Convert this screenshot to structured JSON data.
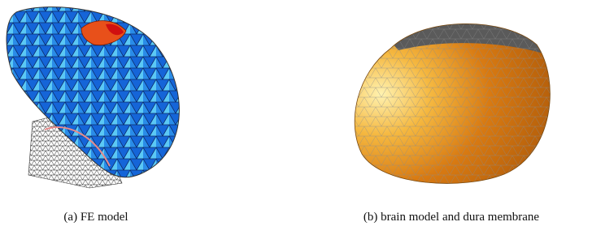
{
  "figures": [
    {
      "caption": "(a) FE model"
    },
    {
      "caption": "(b) brain model and dura membrane"
    }
  ]
}
